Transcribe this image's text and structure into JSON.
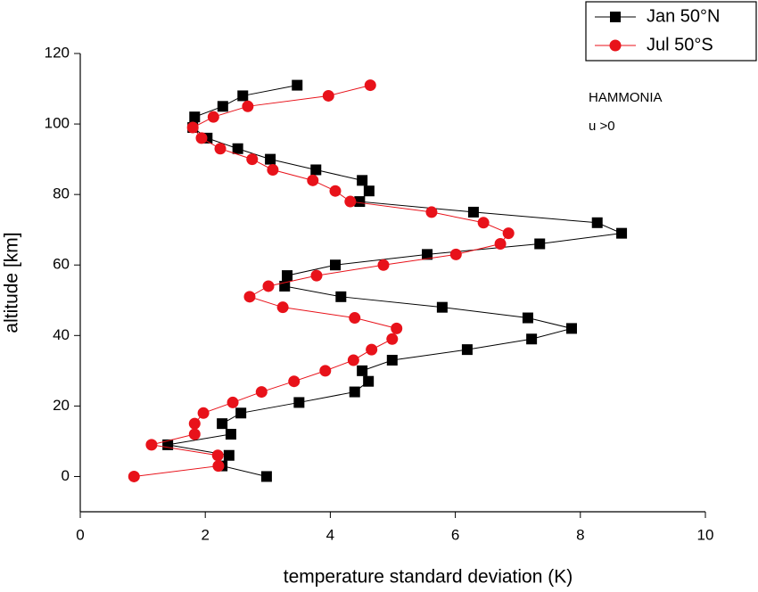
{
  "chart_data": {
    "type": "line",
    "xlabel": "temperature standard deviation  (K)",
    "ylabel": "altitude [km]",
    "annotations": [
      "HAMMONIA",
      "u >0"
    ],
    "xlim": [
      0,
      10
    ],
    "xticks": [
      0,
      2,
      4,
      6,
      8,
      10
    ],
    "ylim": [
      -10,
      120
    ],
    "yticks": [
      0,
      20,
      40,
      60,
      80,
      100,
      120
    ],
    "legend": "top-right",
    "series": [
      {
        "name": "Jan 50°N",
        "color": "#000000",
        "marker": "square",
        "x": [
          3.47,
          2.6,
          2.28,
          1.83,
          1.8,
          2.03,
          2.52,
          3.04,
          3.77,
          4.51,
          4.62,
          4.47,
          6.29,
          8.27,
          8.66,
          7.35,
          5.55,
          4.08,
          3.31,
          3.27,
          4.17,
          5.79,
          7.16,
          7.86,
          7.22,
          6.19,
          4.99,
          4.51,
          4.61,
          4.39,
          3.5,
          2.57,
          2.27,
          2.41,
          1.4,
          2.38,
          2.27,
          2.98
        ],
        "values": [
          111,
          108,
          105,
          102,
          99,
          96,
          93,
          90,
          87,
          84,
          81,
          78,
          75,
          72,
          69,
          66,
          63,
          60,
          57,
          54,
          51,
          48,
          45,
          42,
          39,
          36,
          33,
          30,
          27,
          24,
          21,
          18,
          15,
          12,
          9,
          6,
          3,
          0
        ]
      },
      {
        "name": "Jul 50°S",
        "color": "#e8121a",
        "marker": "circle",
        "x": [
          4.64,
          3.97,
          2.68,
          2.13,
          1.8,
          1.94,
          2.24,
          2.75,
          3.08,
          3.72,
          4.08,
          4.32,
          5.62,
          6.45,
          6.85,
          6.72,
          6.01,
          4.85,
          3.78,
          3.01,
          2.71,
          3.24,
          4.39,
          5.06,
          4.99,
          4.66,
          4.37,
          3.92,
          3.42,
          2.9,
          2.44,
          1.97,
          1.83,
          1.83,
          1.14,
          2.2,
          2.21,
          0.86
        ],
        "values": [
          111,
          108,
          105,
          102,
          99,
          96,
          93,
          90,
          87,
          84,
          81,
          78,
          75,
          72,
          69,
          66,
          63,
          60,
          57,
          54,
          51,
          48,
          45,
          42,
          39,
          36,
          33,
          30,
          27,
          24,
          21,
          18,
          15,
          12,
          9,
          6,
          3,
          0
        ]
      }
    ]
  }
}
